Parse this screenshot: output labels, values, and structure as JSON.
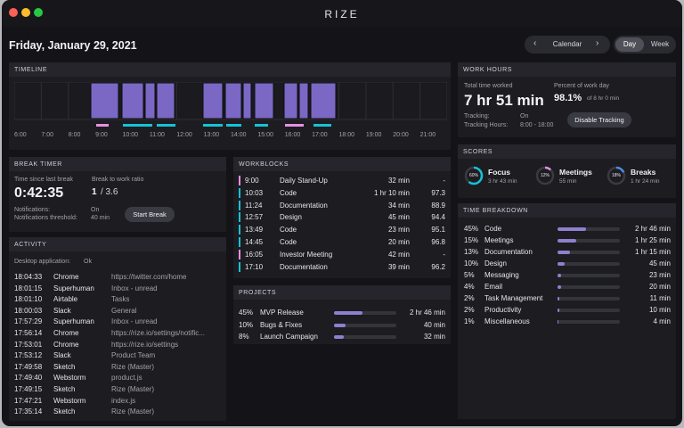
{
  "window": {
    "title": "RIZE"
  },
  "header": {
    "date": "Friday, January 29, 2021",
    "calendar_label": "Calendar",
    "prev_icon": "‹",
    "next_icon": "›",
    "views": [
      "Day",
      "Week"
    ],
    "active_view": "Day"
  },
  "colors": {
    "bg": "#141418",
    "panel": "#1c1c21",
    "accent": "#8f7fce",
    "cyan": "#14c3d6",
    "pink": "#e58fe2",
    "purple": "#7a68c4"
  },
  "timeline": {
    "title": "TIMELINE",
    "hours": [
      "6:00",
      "7:00",
      "8:00",
      "9:00",
      "10:00",
      "11:00",
      "12:00",
      "13:00",
      "14:00",
      "15:00",
      "16:00",
      "17:00",
      "18:00",
      "19:00",
      "20:00",
      "21:00"
    ]
  },
  "work_hours": {
    "title": "WORK HOURS",
    "total_label": "Total time worked",
    "total_value": "7 hr 51 min",
    "percent_label": "Percent of work day",
    "percent_value": "98.1%",
    "percent_sub": "of 8 hr 0 min",
    "tracking_label": "Tracking:",
    "tracking_value": "On",
    "hours_label": "Tracking Hours:",
    "hours_value": "8:00 - 18:00",
    "disable_button": "Disable Tracking"
  },
  "scores": {
    "title": "SCORES",
    "items": [
      {
        "name": "Focus",
        "percent": "60%",
        "value": "3 hr 43 min",
        "level": 0.6,
        "color": "#14c3d6"
      },
      {
        "name": "Meetings",
        "percent": "12%",
        "value": "55 min",
        "level": 0.12,
        "color": "#e58fe2"
      },
      {
        "name": "Breaks",
        "percent": "18%",
        "value": "1 hr 24 min",
        "level": 0.18,
        "color": "#4a8fe8"
      }
    ]
  },
  "break_timer": {
    "title": "BREAK TIMER",
    "since_label": "Time since last break",
    "since_value": "0:42:35",
    "ratio_label": "Break to work ratio",
    "ratio_value": "1",
    "ratio_total": "/ 3.6",
    "notif_label": "Notifications:",
    "notif_value": "On",
    "thresh_label": "Notifications threshold:",
    "thresh_value": "40 min",
    "start_button": "Start Break"
  },
  "workblocks": {
    "title": "WORKBLOCKS",
    "rows": [
      {
        "time": "9:00",
        "name": "Daily Stand-Up",
        "duration": "32 min",
        "score": "-",
        "color": "#e58fe2"
      },
      {
        "time": "10:03",
        "name": "Code",
        "duration": "1 hr 10 min",
        "score": "97.3",
        "color": "#14c3d6"
      },
      {
        "time": "11:24",
        "name": "Documentation",
        "duration": "34 min",
        "score": "88.9",
        "color": "#14c3d6"
      },
      {
        "time": "12:57",
        "name": "Design",
        "duration": "45 min",
        "score": "94.4",
        "color": "#14c3d6"
      },
      {
        "time": "13:49",
        "name": "Code",
        "duration": "23 min",
        "score": "95.1",
        "color": "#14c3d6"
      },
      {
        "time": "14:45",
        "name": "Code",
        "duration": "20 min",
        "score": "96.8",
        "color": "#14c3d6"
      },
      {
        "time": "16:05",
        "name": "Investor Meeting",
        "duration": "42 min",
        "score": "-",
        "color": "#e58fe2"
      },
      {
        "time": "17:10",
        "name": "Documentation",
        "duration": "39 min",
        "score": "96.2",
        "color": "#14c3d6"
      }
    ]
  },
  "projects": {
    "title": "PROJECTS",
    "rows": [
      {
        "pct": "45%",
        "name": "MVP Release",
        "duration": "2 hr 46 min",
        "level": 0.45
      },
      {
        "pct": "10%",
        "name": "Bugs & Fixes",
        "duration": "40 min",
        "level": 0.18
      },
      {
        "pct": "8%",
        "name": "Launch Campaign",
        "duration": "32 min",
        "level": 0.15
      }
    ]
  },
  "activity": {
    "title": "ACTIVITY",
    "desktop_label": "Desktop application:",
    "desktop_value": "Ok",
    "rows": [
      {
        "time": "18:04:33",
        "app": "Chrome",
        "detail": "https://twitter.com/home"
      },
      {
        "time": "18:01:15",
        "app": "Superhuman",
        "detail": "Inbox - unread"
      },
      {
        "time": "18:01:10",
        "app": "Airtable",
        "detail": "Tasks"
      },
      {
        "time": "18:00:03",
        "app": "Slack",
        "detail": "General"
      },
      {
        "time": "17:57:29",
        "app": "Superhuman",
        "detail": "Inbox - unread"
      },
      {
        "time": "17:56:14",
        "app": "Chrome",
        "detail": "https://rize.io/settings/notific..."
      },
      {
        "time": "17:53:01",
        "app": "Chrome",
        "detail": "https://rize.io/settings"
      },
      {
        "time": "17:53:12",
        "app": "Slack",
        "detail": "Product Team"
      },
      {
        "time": "17:49:58",
        "app": "Sketch",
        "detail": "Rize (Master)"
      },
      {
        "time": "17:49:40",
        "app": "Webstorm",
        "detail": "product.js"
      },
      {
        "time": "17:49:15",
        "app": "Sketch",
        "detail": "Rize (Master)"
      },
      {
        "time": "17:47:21",
        "app": "Webstorm",
        "detail": "index.js"
      },
      {
        "time": "17:35:14",
        "app": "Sketch",
        "detail": "Rize (Master)"
      }
    ]
  },
  "time_breakdown": {
    "title": "TIME BREAKDOWN",
    "rows": [
      {
        "pct": "45%",
        "name": "Code",
        "duration": "2 hr 46 min",
        "level": 0.45
      },
      {
        "pct": "15%",
        "name": "Meetings",
        "duration": "1 hr 25 min",
        "level": 0.3
      },
      {
        "pct": "13%",
        "name": "Documentation",
        "duration": "1 hr 15 min",
        "level": 0.2
      },
      {
        "pct": "10%",
        "name": "Design",
        "duration": "45 min",
        "level": 0.12
      },
      {
        "pct": "5%",
        "name": "Messaging",
        "duration": "23 min",
        "level": 0.06
      },
      {
        "pct": "4%",
        "name": "Email",
        "duration": "20 min",
        "level": 0.05
      },
      {
        "pct": "2%",
        "name": "Task Management",
        "duration": "11 min",
        "level": 0.03
      },
      {
        "pct": "2%",
        "name": "Productivity",
        "duration": "10 min",
        "level": 0.03
      },
      {
        "pct": "1%",
        "name": "Miscellaneous",
        "duration": "4 min",
        "level": 0.02
      }
    ]
  }
}
